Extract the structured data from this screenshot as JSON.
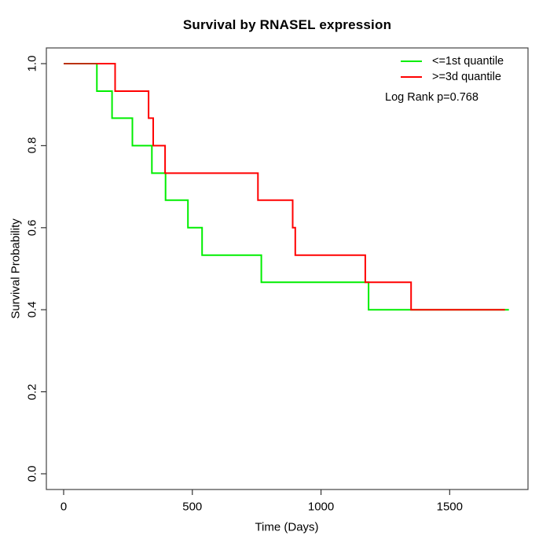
{
  "chart_data": {
    "type": "line",
    "subtype": "kaplan-meier-step",
    "title": "Survival by RNASEL expression",
    "xlabel": "Time (Days)",
    "ylabel": "Survival Probability",
    "xlim": [
      0,
      1800
    ],
    "ylim": [
      0.0,
      1.0
    ],
    "grid": false,
    "xticks": [
      {
        "v": 0,
        "label": "0"
      },
      {
        "v": 500,
        "label": "500"
      },
      {
        "v": 1000,
        "label": "1000"
      },
      {
        "v": 1500,
        "label": "1500"
      }
    ],
    "yticks": [
      {
        "v": 0.0,
        "label": "0.0"
      },
      {
        "v": 0.2,
        "label": "0.2"
      },
      {
        "v": 0.4,
        "label": "0.4"
      },
      {
        "v": 0.6,
        "label": "0.6"
      },
      {
        "v": 0.8,
        "label": "0.8"
      },
      {
        "v": 1.0,
        "label": "1.0"
      }
    ],
    "legend": {
      "position": "top-right",
      "entries": [
        {
          "label": "<=1st quantile",
          "color": "#00ee00"
        },
        {
          "label": ">=3d quantile",
          "color": "#ff0000"
        }
      ]
    },
    "annotation": "Log Rank p=0.768",
    "series": [
      {
        "name": "<=1st quantile",
        "color": "#00ee00",
        "x": [
          0,
          129,
          188,
          267,
          343,
          396,
          483,
          538,
          768,
          1185
        ],
        "y": [
          1.0,
          0.933,
          0.867,
          0.8,
          0.733,
          0.667,
          0.6,
          0.533,
          0.467,
          0.4
        ],
        "end_x": 1730
      },
      {
        "name": ">=3d quantile",
        "color": "#ff0000",
        "x": [
          0,
          200,
          330,
          348,
          394,
          755,
          890,
          900,
          1172,
          1350
        ],
        "y": [
          1.0,
          0.933,
          0.867,
          0.8,
          0.733,
          0.667,
          0.6,
          0.533,
          0.467,
          0.4
        ],
        "end_x": 1715
      }
    ],
    "overlap_segment": {
      "color": "#bb3311",
      "x": [
        0,
        129
      ],
      "y": 1.0
    }
  }
}
